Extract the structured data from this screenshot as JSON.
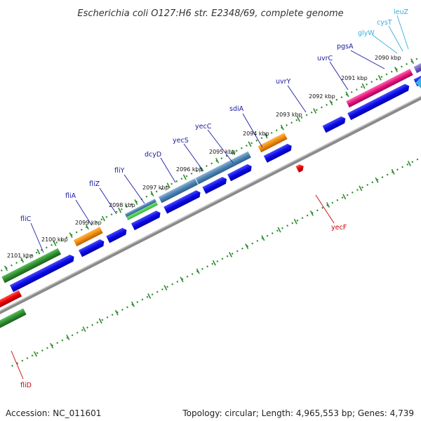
{
  "title": "Escherichia coli O127:H6 str. E2348/69, complete genome",
  "footer": {
    "accession": "Accession: NC_011601",
    "summary": "Topology: circular; Length: 4,965,553 bp; Genes: 4,739"
  },
  "colors": {
    "label_blue": "#1a1aa0",
    "label_cyan": "#3aaedc",
    "label_red": "#cc0000",
    "tick_green": "#2e8b2e",
    "backbone": "#8a8a8a"
  },
  "kbp_labels": [
    "2090 kbp",
    "2091 kbp",
    "2092 kbp",
    "2093 kbp",
    "2094 kbp",
    "2095 kbp",
    "2096 kbp",
    "2097 kbp",
    "2098 kbp",
    "2099 kbp",
    "2100 kbp",
    "2101 kbp"
  ],
  "gene_labels": [
    "leuZ",
    "cysT",
    "glyW",
    "pgsA",
    "uvrC",
    "uvrY",
    "sdiA",
    "yecC",
    "yecS",
    "dcyD",
    "fliY",
    "fliZ",
    "fliA",
    "fliC",
    "yecF",
    "fliD"
  ]
}
